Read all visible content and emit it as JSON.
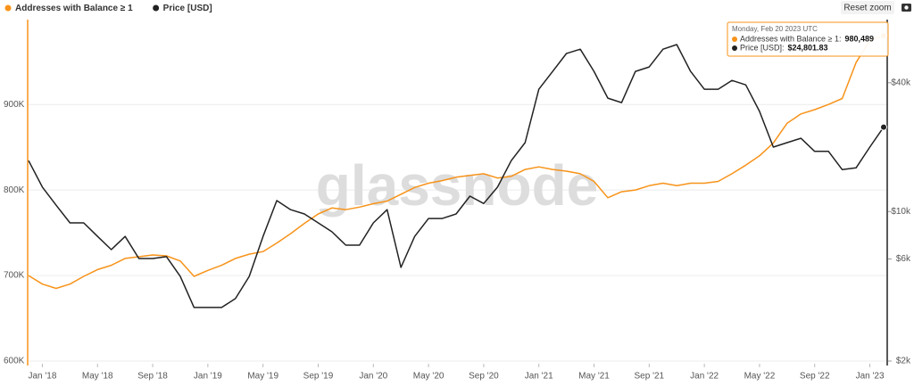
{
  "chart_data": {
    "type": "line",
    "legend": "top-left",
    "grid": true,
    "watermark": "glassnode",
    "reset_button": "Reset zoom",
    "x": [
      "2017-12",
      "2018-01",
      "2018-02",
      "2018-03",
      "2018-04",
      "2018-05",
      "2018-06",
      "2018-07",
      "2018-08",
      "2018-09",
      "2018-10",
      "2018-11",
      "2018-12",
      "2019-01",
      "2019-02",
      "2019-03",
      "2019-04",
      "2019-05",
      "2019-06",
      "2019-07",
      "2019-08",
      "2019-09",
      "2019-10",
      "2019-11",
      "2019-12",
      "2020-01",
      "2020-02",
      "2020-03",
      "2020-04",
      "2020-05",
      "2020-06",
      "2020-07",
      "2020-08",
      "2020-09",
      "2020-10",
      "2020-11",
      "2020-12",
      "2021-01",
      "2021-02",
      "2021-03",
      "2021-04",
      "2021-05",
      "2021-06",
      "2021-07",
      "2021-08",
      "2021-09",
      "2021-10",
      "2021-11",
      "2021-12",
      "2022-01",
      "2022-02",
      "2022-03",
      "2022-04",
      "2022-05",
      "2022-06",
      "2022-07",
      "2022-08",
      "2022-09",
      "2022-10",
      "2022-11",
      "2022-12",
      "2023-01",
      "2023-02"
    ],
    "xlim": [
      "2017-12",
      "2023-02"
    ],
    "xticks": [
      {
        "value": "2018-01",
        "label": "Jan '18"
      },
      {
        "value": "2018-05",
        "label": "May '18"
      },
      {
        "value": "2018-09",
        "label": "Sep '18"
      },
      {
        "value": "2019-01",
        "label": "Jan '19"
      },
      {
        "value": "2019-05",
        "label": "May '19"
      },
      {
        "value": "2019-09",
        "label": "Sep '19"
      },
      {
        "value": "2020-01",
        "label": "Jan '20"
      },
      {
        "value": "2020-05",
        "label": "May '20"
      },
      {
        "value": "2020-09",
        "label": "Sep '20"
      },
      {
        "value": "2021-01",
        "label": "Jan '21"
      },
      {
        "value": "2021-05",
        "label": "May '21"
      },
      {
        "value": "2021-09",
        "label": "Sep '21"
      },
      {
        "value": "2022-01",
        "label": "Jan '22"
      },
      {
        "value": "2022-05",
        "label": "May '22"
      },
      {
        "value": "2022-09",
        "label": "Sep '22"
      },
      {
        "value": "2023-01",
        "label": "Jan '23"
      }
    ],
    "ylim": [
      600000,
      993000
    ],
    "yticks": [
      {
        "value": 600000,
        "label": "600K"
      },
      {
        "value": 700000,
        "label": "700K"
      },
      {
        "value": 800000,
        "label": "800K"
      },
      {
        "value": 900000,
        "label": "900K"
      }
    ],
    "y2lim": [
      2000,
      74500
    ],
    "y2_log": true,
    "y2ticks": [
      {
        "value": 2000,
        "label": "$2k"
      },
      {
        "value": 6000,
        "label": "$6k"
      },
      {
        "value": 10000,
        "label": "$10k"
      },
      {
        "value": 40000,
        "label": "$40k"
      }
    ],
    "series": [
      {
        "name": "Addresses with Balance ≥ 1",
        "color": "#f7931a",
        "values": [
          700000,
          690000,
          685000,
          690000,
          699000,
          707000,
          712000,
          720000,
          722000,
          724000,
          723000,
          717000,
          699000,
          706000,
          712000,
          720000,
          725000,
          728000,
          738000,
          749000,
          761000,
          772000,
          779000,
          777000,
          780000,
          784000,
          787000,
          795000,
          803000,
          808000,
          811000,
          815000,
          817000,
          819000,
          814000,
          816000,
          824000,
          827000,
          824000,
          822000,
          819000,
          810000,
          791000,
          798000,
          800000,
          805000,
          808000,
          805000,
          808000,
          808000,
          810000,
          819000,
          829000,
          840000,
          855000,
          878000,
          889000,
          894000,
          900000,
          907000,
          949000,
          975000,
          980489
        ]
      },
      {
        "name": "Price [USD]",
        "color": "#222222",
        "axis": "y2",
        "values": [
          17300,
          13000,
          10700,
          8850,
          8850,
          7650,
          6640,
          7650,
          6030,
          6030,
          6150,
          4970,
          3560,
          3560,
          3560,
          3920,
          4970,
          7650,
          11250,
          10200,
          9740,
          8850,
          8040,
          6960,
          6960,
          8850,
          10200,
          5480,
          7650,
          9280,
          9280,
          9740,
          11800,
          10900,
          13000,
          17300,
          21000,
          37300,
          45200,
          54800,
          57400,
          45200,
          33900,
          32300,
          45200,
          47400,
          57400,
          60300,
          45200,
          37300,
          37300,
          41000,
          39100,
          29400,
          20000,
          21000,
          22000,
          19100,
          19100,
          15700,
          16000,
          20000,
          24801.83
        ]
      }
    ],
    "tooltip": {
      "date": "Monday, Feb 20 2023 UTC",
      "entries": [
        {
          "label": "Addresses with Balance ≥ 1:",
          "value": "980,489"
        },
        {
          "label": "Price [USD]:",
          "value": "$24,801.83"
        }
      ]
    }
  }
}
